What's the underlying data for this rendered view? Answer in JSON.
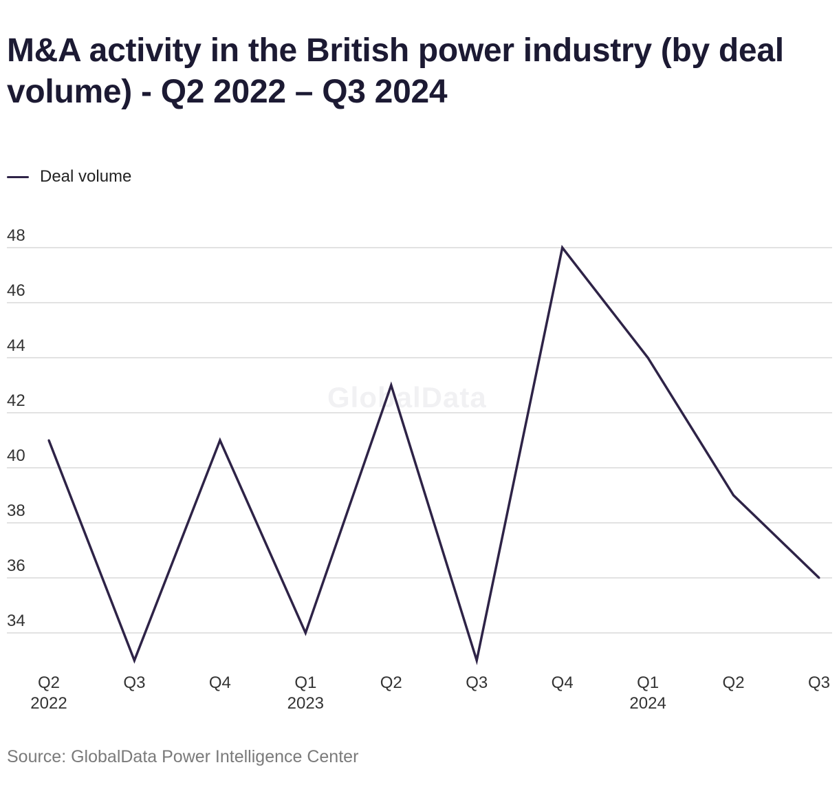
{
  "colors": {
    "series": "#2e2347",
    "grid": "#d9d9d9",
    "title": "#1c1a33",
    "source": "#7a7a7a"
  },
  "watermark": "GlobalData",
  "source": "Source: GlobalData Power Intelligence Center",
  "chart_data": {
    "type": "line",
    "title": "M&A activity in the British power industry (by deal volume) - Q2 2022 – Q3 2024",
    "xlabel": "",
    "ylabel": "",
    "categories": [
      {
        "quarter": "Q2",
        "year": "2022"
      },
      {
        "quarter": "Q3",
        "year": ""
      },
      {
        "quarter": "Q4",
        "year": ""
      },
      {
        "quarter": "Q1",
        "year": "2023"
      },
      {
        "quarter": "Q2",
        "year": ""
      },
      {
        "quarter": "Q3",
        "year": ""
      },
      {
        "quarter": "Q4",
        "year": ""
      },
      {
        "quarter": "Q1",
        "year": "2024"
      },
      {
        "quarter": "Q2",
        "year": ""
      },
      {
        "quarter": "Q3",
        "year": ""
      }
    ],
    "series": [
      {
        "name": "Deal volume",
        "values": [
          41,
          33,
          41,
          34,
          43,
          33,
          48,
          44,
          39,
          36
        ]
      }
    ],
    "yticks": [
      34,
      36,
      38,
      40,
      42,
      44,
      46,
      48
    ],
    "ylim": [
      33,
      48
    ],
    "grid": true,
    "legend": "top-left"
  }
}
